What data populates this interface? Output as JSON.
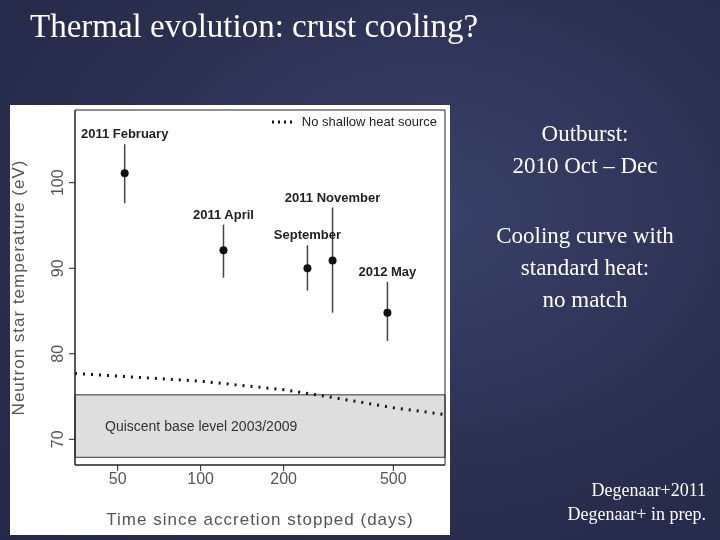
{
  "title": "Thermal evolution: crust cooling?",
  "notes": [
    [
      "Outburst:",
      "2010 Oct – Dec"
    ],
    [
      "Cooling curve with",
      "standard heat:",
      "no match"
    ]
  ],
  "citations": [
    "Degenaar+2011",
    "Degenaar+ in prep."
  ],
  "chart_data": {
    "type": "scatter",
    "x_label": "Time since accretion stopped (days)",
    "y_label": "Neutron star temperature (eV)",
    "log": "x",
    "xlim": [
      35,
      770
    ],
    "ylim": [
      67,
      108.5
    ],
    "xticks": [
      50,
      100,
      200,
      500
    ],
    "yticks": [
      70,
      80,
      90,
      100
    ],
    "legend": "upper right",
    "points": {
      "x": [
        53,
        121,
        244,
        301,
        476
      ],
      "values": [
        101.1,
        92.1,
        90.0,
        90.9,
        84.8
      ],
      "errors": [
        [
          3.5,
          3.4
        ],
        [
          3.2,
          3.0
        ],
        [
          2.6,
          2.7
        ],
        [
          6.1,
          6.2
        ],
        [
          3.3,
          3.6
        ]
      ],
      "labels": [
        "2011 February",
        "2011 April",
        "September",
        "2011 November",
        "2012 May"
      ],
      "color": "#111111",
      "marker": "circle"
    },
    "series": [
      {
        "name": "No shallow heat source",
        "type": "line",
        "line_style": "dotted",
        "color": "#111111",
        "x": [
          35,
          100,
          200,
          300,
          500,
          770
        ],
        "values": [
          77.7,
          76.8,
          75.8,
          74.9,
          73.7,
          72.9
        ]
      }
    ],
    "band": {
      "label": "Quiscent base level 2003/2009",
      "range": [
        67.9,
        75.2
      ],
      "color": "#dedede"
    }
  }
}
